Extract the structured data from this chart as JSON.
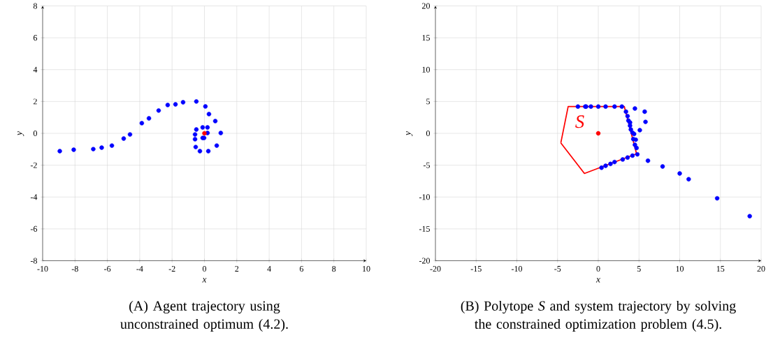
{
  "chart_data": [
    {
      "type": "scatter",
      "xlabel": "x",
      "ylabel": "y",
      "xlim": [
        -10,
        10
      ],
      "ylim": [
        -8,
        8
      ],
      "xticks": [
        -10,
        -8,
        -6,
        -4,
        -2,
        0,
        2,
        4,
        6,
        8,
        10
      ],
      "yticks": [
        -8,
        -6,
        -4,
        -2,
        0,
        2,
        4,
        6,
        8
      ],
      "grid": true,
      "series": [
        {
          "color": "#0000ff",
          "x": [
            -8.94,
            -8.08,
            -6.87,
            -6.35,
            -5.72,
            -4.99,
            -4.6,
            -3.87,
            -3.43,
            -2.83,
            -2.27,
            -1.79,
            -1.32,
            -0.5,
            0.06,
            0.28,
            0.67,
            1.01,
            0.76,
            0.24,
            -0.28,
            -0.54,
            -0.58,
            -0.58,
            -0.5,
            -0.11,
            0.19,
            0.19,
            -0.02,
            -0.11
          ],
          "values": [
            -1.12,
            -1.03,
            -0.99,
            -0.9,
            -0.77,
            -0.33,
            -0.07,
            0.64,
            0.94,
            1.43,
            1.78,
            1.82,
            1.95,
            2.0,
            1.69,
            1.21,
            0.77,
            0.02,
            -0.77,
            -1.12,
            -1.12,
            -0.86,
            -0.37,
            -0.07,
            0.24,
            0.37,
            0.37,
            0.02,
            -0.29,
            -0.29
          ]
        },
        {
          "color": "#ff0000",
          "x": [
            0
          ],
          "values": [
            0
          ]
        }
      ],
      "annotations": [
        "(A)  Agent trajectory using unconstrained optimum (4.2)."
      ]
    },
    {
      "type": "scatter",
      "xlabel": "x",
      "ylabel": "y",
      "xlim": [
        -20,
        20
      ],
      "ylim": [
        -20,
        20
      ],
      "xticks": [
        -20,
        -15,
        -10,
        -5,
        0,
        5,
        10,
        15,
        20
      ],
      "yticks": [
        -20,
        -15,
        -10,
        -5,
        0,
        5,
        10,
        15,
        20
      ],
      "grid": true,
      "series": [
        {
          "type": "line",
          "name": "S",
          "color": "#ff0000",
          "x": [
            -4.6,
            -3.7,
            3.2,
            4.7
          ],
          "values": [
            -1.5,
            4.2,
            4.2,
            -3.2
          ]
        },
        {
          "type": "line",
          "color": "#ff0000",
          "x": [
            -4.6,
            -1.7,
            4.7
          ],
          "values": [
            -1.5,
            -6.3,
            -3.2
          ]
        },
        {
          "color": "#ff0000",
          "x": [
            0
          ],
          "values": [
            0
          ]
        },
        {
          "color": "#0000ff",
          "x": [
            -2.5,
            -1.6,
            -1.5,
            -0.9,
            0.0,
            0.9,
            2.0,
            2.9,
            3.4,
            3.6,
            3.7,
            3.9,
            3.9,
            4.0,
            4.2,
            4.4,
            4.3,
            4.6,
            4.5,
            4.7,
            4.8,
            4.5,
            5.7,
            5.8,
            5.1,
            4.2,
            3.6,
            3.0,
            2.0,
            1.5,
            0.9,
            0.4,
            6.1,
            7.9,
            10.0,
            11.1,
            14.6,
            18.6
          ],
          "values": [
            4.2,
            4.2,
            4.2,
            4.2,
            4.2,
            4.2,
            4.2,
            4.2,
            3.4,
            2.7,
            2.0,
            1.7,
            1.2,
            0.6,
            0.1,
            -0.1,
            -0.9,
            -1.0,
            -1.8,
            -2.3,
            -3.3,
            3.9,
            3.4,
            1.8,
            0.5,
            -3.5,
            -3.8,
            -4.1,
            -4.5,
            -4.8,
            -5.1,
            -5.4,
            -4.3,
            -5.2,
            -6.3,
            -7.2,
            -10.2,
            -13.0
          ]
        }
      ],
      "annotations": [
        "(B)  Polytope *S* and system trajectory by solving the constrained optimization problem (4.5)."
      ]
    }
  ]
}
